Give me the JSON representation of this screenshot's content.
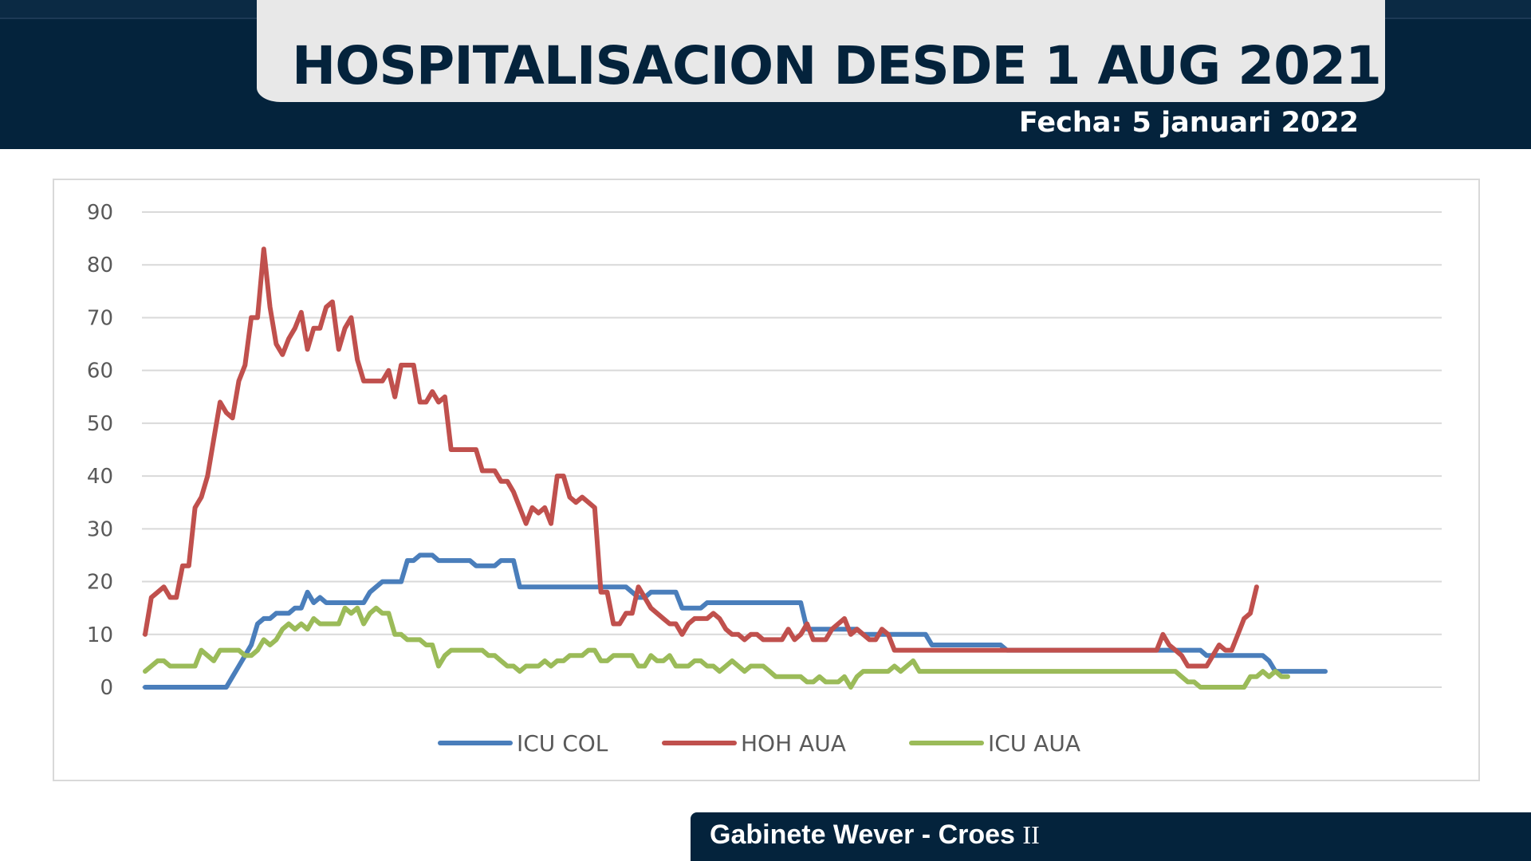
{
  "header": {
    "title": "HOSPITALISACION DESDE 1 AUG 2021",
    "date": "Fecha: 5 januari 2022"
  },
  "footer": {
    "org": "Gabinete Wever - Croes",
    "roman": "II"
  },
  "colors": {
    "navy": "#04233c",
    "title_tab": "#e8e8e8",
    "grid": "#d9d9d9"
  },
  "chart_data": {
    "type": "line",
    "title": "",
    "xlabel": "",
    "ylabel": "",
    "ylim": [
      0,
      90
    ],
    "yticks": [
      0,
      10,
      20,
      30,
      40,
      50,
      60,
      70,
      80,
      90
    ],
    "grid": true,
    "legend_position": "bottom",
    "series": [
      {
        "name": "ICU COL",
        "color": "#4a7ebb",
        "values": [
          0,
          0,
          0,
          0,
          0,
          0,
          0,
          0,
          0,
          0,
          0,
          0,
          0,
          0,
          2,
          4,
          6,
          8,
          12,
          13,
          13,
          14,
          14,
          14,
          15,
          15,
          18,
          16,
          17,
          16,
          16,
          16,
          16,
          16,
          16,
          16,
          18,
          19,
          20,
          20,
          20,
          20,
          24,
          24,
          25,
          25,
          25,
          24,
          24,
          24,
          24,
          24,
          24,
          23,
          23,
          23,
          23,
          24,
          24,
          24,
          19,
          19,
          19,
          19,
          19,
          19,
          19,
          19,
          19,
          19,
          19,
          19,
          19,
          19,
          19,
          19,
          19,
          19,
          18,
          17,
          17,
          18,
          18,
          18,
          18,
          18,
          15,
          15,
          15,
          15,
          16,
          16,
          16,
          16,
          16,
          16,
          16,
          16,
          16,
          16,
          16,
          16,
          16,
          16,
          16,
          16,
          11,
          11,
          11,
          11,
          11,
          11,
          11,
          11,
          11,
          10,
          10,
          10,
          10,
          10,
          10,
          10,
          10,
          10,
          10,
          10,
          8,
          8,
          8,
          8,
          8,
          8,
          8,
          8,
          8,
          8,
          8,
          8,
          7,
          7,
          7,
          7,
          7,
          7,
          7,
          7,
          7,
          7,
          7,
          7,
          7,
          7,
          7,
          7,
          7,
          7,
          7,
          7,
          7,
          7,
          7,
          7,
          7,
          7,
          7,
          7,
          7,
          7,
          7,
          7,
          6,
          6,
          6,
          6,
          6,
          6,
          6,
          6,
          6,
          6,
          5,
          3,
          3,
          3,
          3,
          3,
          3,
          3,
          3,
          3
        ]
      },
      {
        "name": "HOH AUA",
        "color": "#c0504d",
        "values": [
          10,
          17,
          18,
          19,
          17,
          17,
          23,
          23,
          34,
          36,
          40,
          47,
          54,
          52,
          51,
          58,
          61,
          70,
          70,
          83,
          72,
          65,
          63,
          66,
          68,
          71,
          64,
          68,
          68,
          72,
          73,
          64,
          68,
          70,
          62,
          58,
          58,
          58,
          58,
          60,
          55,
          61,
          61,
          61,
          54,
          54,
          56,
          54,
          55,
          45,
          45,
          45,
          45,
          45,
          41,
          41,
          41,
          39,
          39,
          37,
          34,
          31,
          34,
          33,
          34,
          31,
          40,
          40,
          36,
          35,
          36,
          35,
          34,
          18,
          18,
          12,
          12,
          14,
          14,
          19,
          17,
          15,
          14,
          13,
          12,
          12,
          10,
          12,
          13,
          13,
          13,
          14,
          13,
          11,
          10,
          10,
          9,
          10,
          10,
          9,
          9,
          9,
          9,
          11,
          9,
          10,
          12,
          9,
          9,
          9,
          11,
          12,
          13,
          10,
          11,
          10,
          9,
          9,
          11,
          10,
          7,
          7,
          7,
          7,
          7,
          7,
          7,
          7,
          7,
          7,
          7,
          7,
          7,
          7,
          7,
          7,
          7,
          7,
          7,
          7,
          7,
          7,
          7,
          7,
          7,
          7,
          7,
          7,
          7,
          7,
          7,
          7,
          7,
          7,
          7,
          7,
          7,
          7,
          7,
          7,
          7,
          7,
          7,
          10,
          8,
          7,
          6,
          4,
          4,
          4,
          4,
          6,
          8,
          7,
          7,
          10,
          13,
          14,
          19
        ]
      },
      {
        "name": "ICU AUA",
        "color": "#9bbb59",
        "values": [
          3,
          4,
          5,
          5,
          4,
          4,
          4,
          4,
          4,
          7,
          6,
          5,
          7,
          7,
          7,
          7,
          6,
          6,
          7,
          9,
          8,
          9,
          11,
          12,
          11,
          12,
          11,
          13,
          12,
          12,
          12,
          12,
          15,
          14,
          15,
          12,
          14,
          15,
          14,
          14,
          10,
          10,
          9,
          9,
          9,
          8,
          8,
          4,
          6,
          7,
          7,
          7,
          7,
          7,
          7,
          6,
          6,
          5,
          4,
          4,
          3,
          4,
          4,
          4,
          5,
          4,
          5,
          5,
          6,
          6,
          6,
          7,
          7,
          5,
          5,
          6,
          6,
          6,
          6,
          4,
          4,
          6,
          5,
          5,
          6,
          4,
          4,
          4,
          5,
          5,
          4,
          4,
          3,
          4,
          5,
          4,
          3,
          4,
          4,
          4,
          3,
          2,
          2,
          2,
          2,
          2,
          1,
          1,
          2,
          1,
          1,
          1,
          2,
          0,
          2,
          3,
          3,
          3,
          3,
          3,
          4,
          3,
          4,
          5,
          3,
          3,
          3,
          3,
          3,
          3,
          3,
          3,
          3,
          3,
          3,
          3,
          3,
          3,
          3,
          3,
          3,
          3,
          3,
          3,
          3,
          3,
          3,
          3,
          3,
          3,
          3,
          3,
          3,
          3,
          3,
          3,
          3,
          3,
          3,
          3,
          3,
          3,
          3,
          3,
          3,
          3,
          2,
          1,
          1,
          0,
          0,
          0,
          0,
          0,
          0,
          0,
          0,
          2,
          2,
          3,
          2,
          3,
          2,
          2
        ]
      }
    ]
  }
}
